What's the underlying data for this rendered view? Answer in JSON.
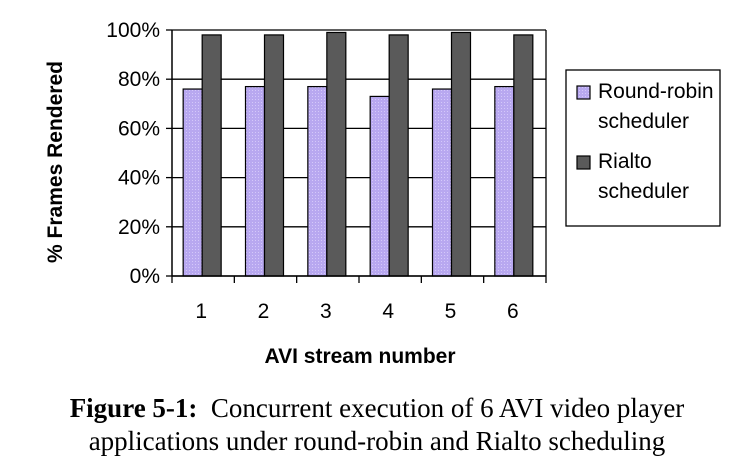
{
  "chart_data": {
    "type": "bar",
    "title": "",
    "xlabel": "AVI stream number",
    "ylabel": "% Frames Rendered",
    "categories": [
      "1",
      "2",
      "3",
      "4",
      "5",
      "6"
    ],
    "ylim": [
      0,
      100
    ],
    "yticks": [
      0,
      20,
      40,
      60,
      80,
      100
    ],
    "ytick_labels": [
      "0%",
      "20%",
      "40%",
      "60%",
      "80%",
      "100%"
    ],
    "grid": true,
    "legend_position": "right",
    "series": [
      {
        "name": "Round-robin scheduler",
        "legend_lines": [
          "Round-robin",
          "scheduler"
        ],
        "color": "#b8a8f0",
        "values": [
          76,
          77,
          77,
          73,
          76,
          77
        ]
      },
      {
        "name": "Rialto scheduler",
        "legend_lines": [
          "Rialto",
          "scheduler"
        ],
        "color": "#5a5a5a",
        "values": [
          98,
          98,
          99,
          98,
          99,
          98
        ]
      }
    ]
  },
  "caption": {
    "label": "Figure 5-1:",
    "line1": "Concurrent execution of 6 AVI video player",
    "line2": "applications under round-robin and Rialto scheduling"
  }
}
